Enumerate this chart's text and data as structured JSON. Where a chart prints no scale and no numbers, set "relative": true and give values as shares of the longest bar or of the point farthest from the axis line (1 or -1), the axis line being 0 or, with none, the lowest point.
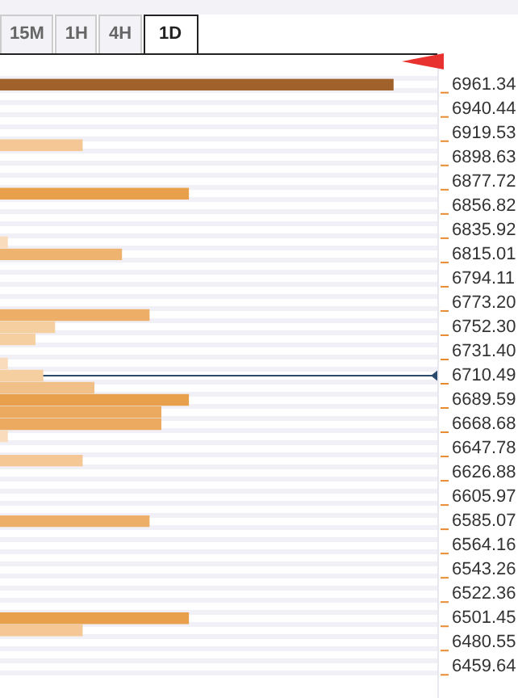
{
  "chart_data": {
    "type": "bar",
    "orientation": "horizontal",
    "relative": true,
    "categories": [
      "6961.34",
      null,
      "6940.44",
      null,
      "6919.53",
      null,
      "6898.63",
      null,
      "6877.72",
      null,
      "6856.82",
      null,
      "6835.92",
      null,
      "6815.01",
      null,
      "6794.11",
      null,
      "6773.20",
      null,
      "6752.30",
      null,
      "6731.40",
      null,
      "6710.49",
      null,
      "6689.59",
      null,
      "6668.68",
      null,
      "6647.78",
      null,
      "6626.88",
      null,
      "6605.97",
      null,
      "6585.07",
      null,
      "6564.16",
      null,
      "6543.26",
      null,
      "6522.36",
      null,
      "6501.45",
      null,
      "6480.55",
      null,
      "6459.64"
    ],
    "values": [
      1.0,
      null,
      null,
      null,
      null,
      0.21,
      null,
      null,
      null,
      0.48,
      null,
      null,
      null,
      0.02,
      0.31,
      null,
      null,
      null,
      null,
      0.38,
      0.14,
      0.09,
      null,
      0.02,
      0.11,
      0.24,
      0.48,
      0.41,
      0.41,
      0.02,
      null,
      0.21,
      null,
      null,
      null,
      null,
      0.38,
      null,
      null,
      null,
      null,
      null,
      null,
      null,
      0.48,
      0.21,
      null,
      null,
      null
    ],
    "colors": [
      "#a0612a",
      null,
      null,
      null,
      null,
      "#f5c795",
      null,
      null,
      null,
      "#e8a04c",
      null,
      null,
      null,
      "#f8dcbc",
      "#efb370",
      null,
      null,
      null,
      null,
      "#edae68",
      "#f5cfa0",
      "#f5cfa0",
      null,
      "#f8dcbc",
      "#f5cfa0",
      "#f0c088",
      "#e8a04c",
      "#ecaa60",
      "#ecaa60",
      "#f8dcbc",
      null,
      "#f5c795",
      null,
      null,
      null,
      null,
      "#edae68",
      null,
      null,
      null,
      null,
      null,
      null,
      null,
      "#e8a04c",
      "#f5c795",
      null,
      null,
      null
    ],
    "ref_lines": [
      {
        "axis": "y",
        "value": "6710.49",
        "color": "#2a4a6e"
      }
    ],
    "annotations": [
      "15M",
      "1H",
      "4H",
      "1D"
    ],
    "grid": "y",
    "legend": false
  }
}
